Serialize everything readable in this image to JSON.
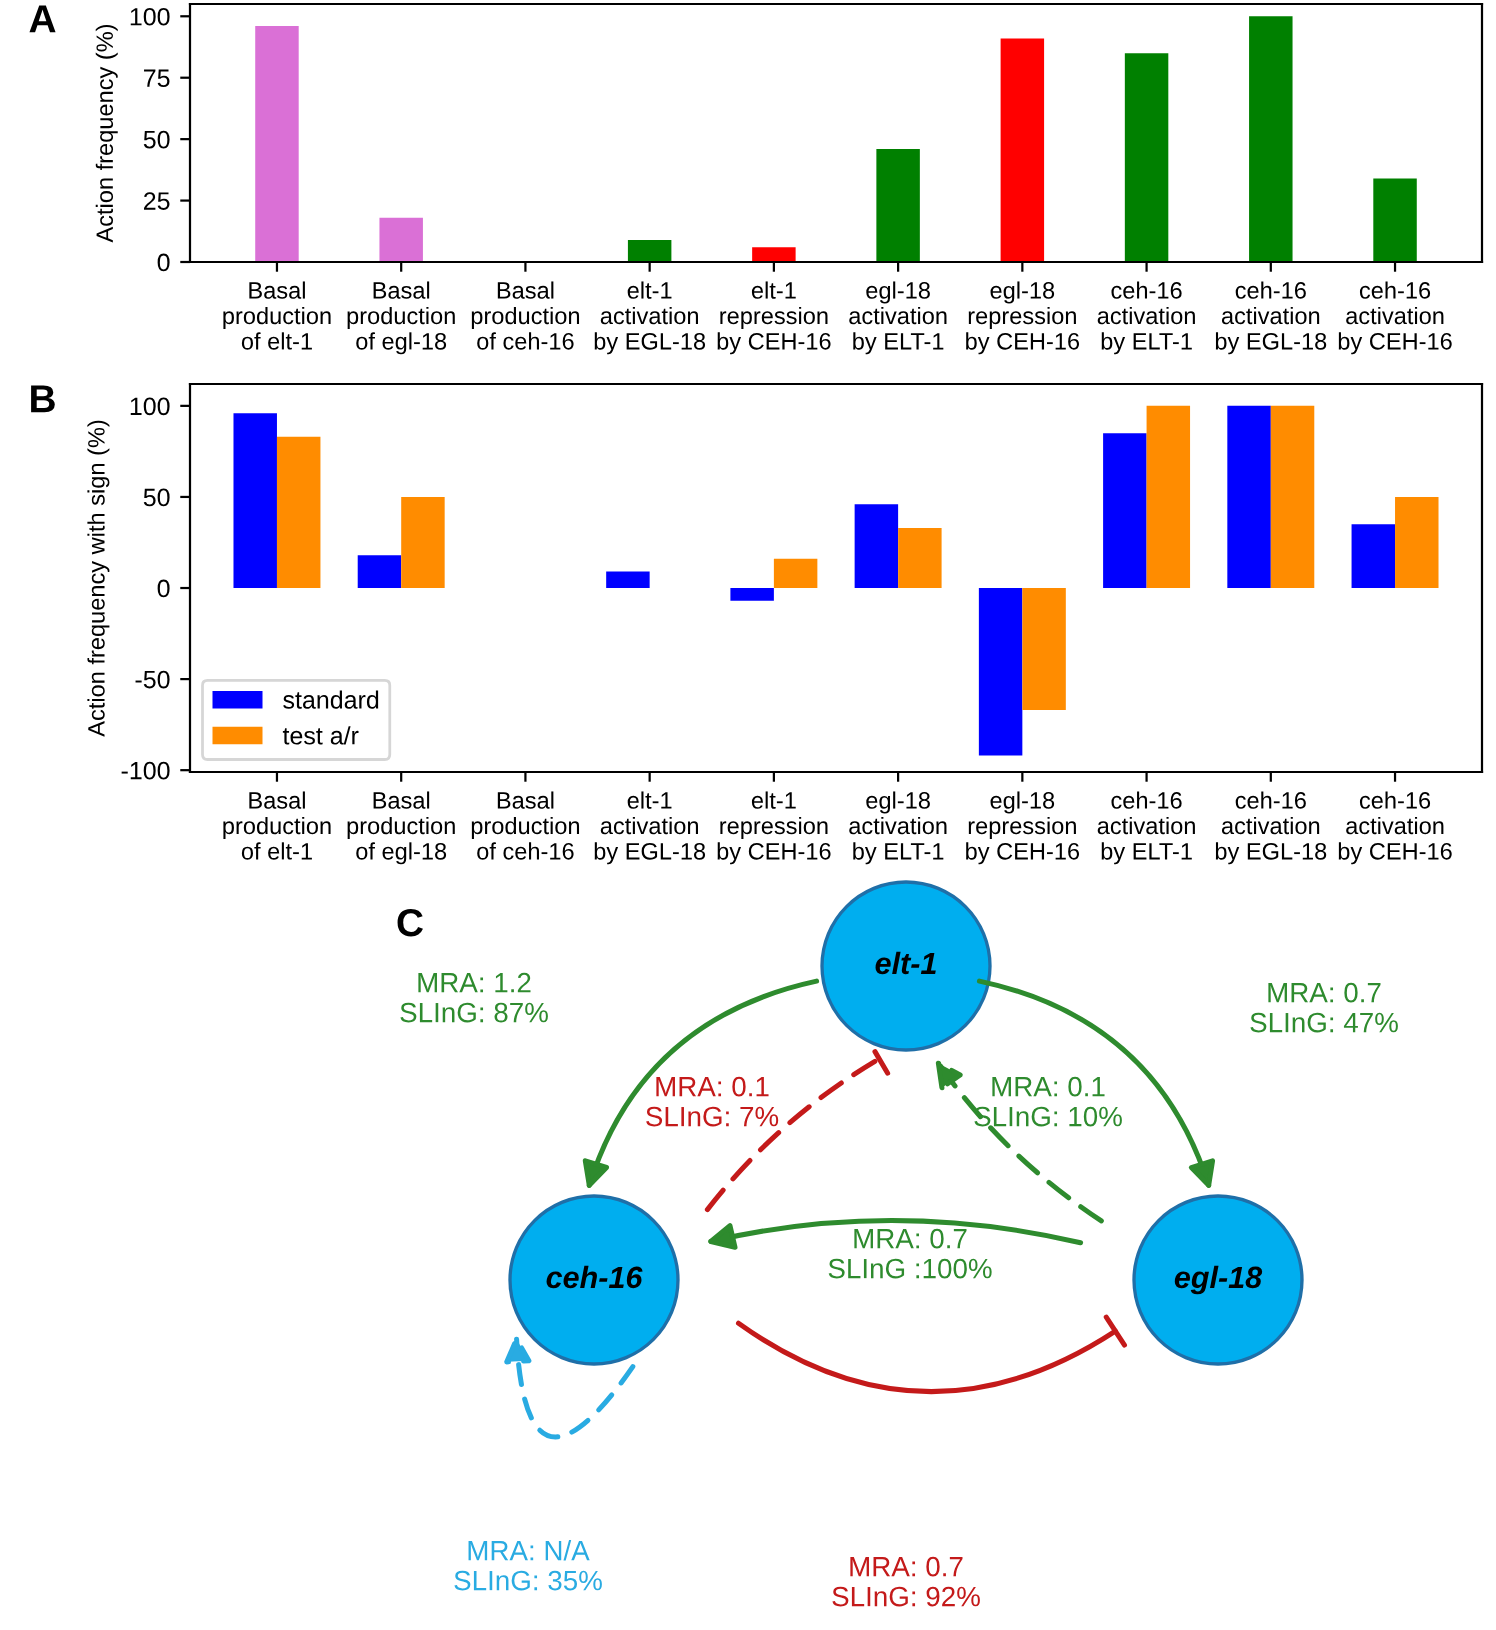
{
  "chart_data": [
    {
      "type": "bar",
      "ylabel": "Action frequency (%)",
      "annotations": [
        "A"
      ],
      "categories": [
        "Basal\nproduction\nof elt-1",
        "Basal\nproduction\nof egl-18",
        "Basal\nproduction\nof ceh-16",
        "elt-1\nactivation\nby EGL-18",
        "elt-1\nrepression\nby CEH-16",
        "egl-18\nactivation\nby ELT-1",
        "egl-18\nrepression\nby CEH-16",
        "ceh-16\nactivation\nby ELT-1",
        "ceh-16\nactivation\nby EGL-18",
        "ceh-16\nactivation\nby CEH-16"
      ],
      "values": [
        96,
        18,
        0,
        9,
        6,
        46,
        91,
        85,
        100,
        34
      ],
      "colors": [
        "#da70d6",
        "#da70d6",
        "#da70d6",
        "#008000",
        "#ff0000",
        "#008000",
        "#ff0000",
        "#008000",
        "#008000",
        "#008000"
      ],
      "ylim": [
        0,
        105
      ],
      "yticks": [
        0,
        25,
        50,
        75,
        100
      ],
      "grid": false
    },
    {
      "type": "bar",
      "ylabel": "Action frequency with sign (%)",
      "annotations": [
        "B"
      ],
      "categories": [
        "Basal\nproduction\nof elt-1",
        "Basal\nproduction\nof egl-18",
        "Basal\nproduction\nof ceh-16",
        "elt-1\nactivation\nby EGL-18",
        "elt-1\nrepression\nby CEH-16",
        "egl-18\nactivation\nby ELT-1",
        "egl-18\nrepression\nby CEH-16",
        "ceh-16\nactivation\nby ELT-1",
        "ceh-16\nactivation\nby EGL-18",
        "ceh-16\nactivation\nby CEH-16"
      ],
      "series": [
        {
          "name": "standard",
          "color": "#0000ff",
          "values": [
            96,
            18,
            0,
            9,
            -7,
            46,
            -92,
            85,
            100,
            35
          ]
        },
        {
          "name": "test a/r",
          "color": "#ff8c00",
          "values": [
            83,
            50,
            0,
            0,
            16,
            33,
            -67,
            100,
            100,
            50
          ]
        }
      ],
      "ylim": [
        -101,
        112
      ],
      "yticks": [
        -100,
        -50,
        0,
        50,
        100
      ],
      "grid": false,
      "legend": "bottom left"
    },
    {
      "type": "other",
      "annotations": [
        "C",
        "elt-1",
        "ceh-16",
        "egl-18",
        "MRA: 1.2\nSLInG: 87%",
        "MRA: 0.1\nSLInG: 7%",
        "MRA: 0.1\nSLInG: 10%",
        "MRA: 0.7\nSLInG: 47%",
        "MRA: 0.7\nSLInG :100%",
        "MRA: 0.7\nSLInG: 92%",
        "MRA: N/A\nSLInG: 35%"
      ]
    }
  ]
}
